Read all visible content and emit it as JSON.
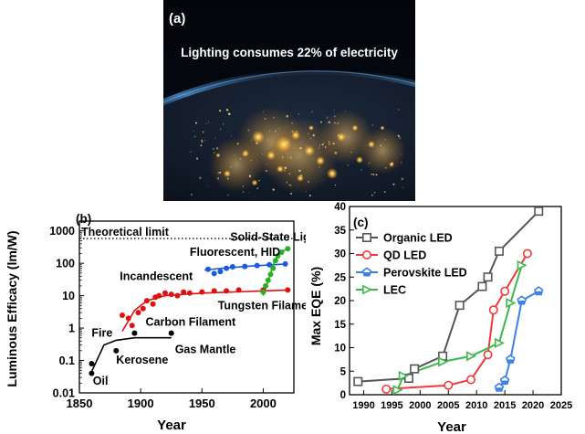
{
  "photo": {
    "panel_label": "(a)",
    "caption": "Lighting consumes 22% of electricity"
  },
  "chart_data": [
    {
      "type": "scatter",
      "panel_label": "(b)",
      "title": "",
      "xlabel": "Year",
      "ylabel": "Luminous Efficacy (lm/W)",
      "x_range": [
        1850,
        2025
      ],
      "x_ticks": [
        1850,
        1900,
        1950,
        2000
      ],
      "y_scale": "log",
      "y_range": [
        0.01,
        2000
      ],
      "y_ticks": [
        {
          "value": 0.01,
          "label": "0.01"
        },
        {
          "value": 0.1,
          "label": "0.1"
        },
        {
          "value": 1,
          "label": "1"
        },
        {
          "value": 10,
          "label": "10"
        },
        {
          "value": 100,
          "label": "100"
        },
        {
          "value": 1000,
          "label": "1000"
        }
      ],
      "grid": false,
      "reference_line": {
        "label": "Theoretical limit",
        "value": 580,
        "style": "dotted"
      },
      "series": [
        {
          "color": "#000000",
          "points": [
            [
              1860,
              0.04
            ],
            [
              1860,
              0.08
            ],
            [
              1880,
              0.2
            ],
            [
              1895,
              0.7
            ],
            [
              1925,
              0.7
            ]
          ],
          "fit": [
            [
              1860,
              0.045
            ],
            [
              1870,
              0.3
            ],
            [
              1880,
              0.42
            ],
            [
              1895,
              0.5
            ],
            [
              1925,
              0.5
            ]
          ]
        },
        {
          "color": "#e01010",
          "points": [
            [
              1885,
              2.5
            ],
            [
              1890,
              2
            ],
            [
              1893,
              1.2
            ],
            [
              1898,
              3
            ],
            [
              1902,
              4
            ],
            [
              1905,
              7
            ],
            [
              1910,
              5.5
            ],
            [
              1912,
              9
            ],
            [
              1915,
              10
            ],
            [
              1920,
              12
            ],
            [
              1925,
              11
            ],
            [
              1930,
              10
            ],
            [
              1935,
              13
            ],
            [
              1940,
              12
            ],
            [
              1950,
              13
            ],
            [
              1960,
              14
            ],
            [
              1970,
              14
            ],
            [
              1980,
              15
            ],
            [
              2000,
              15
            ],
            [
              2020,
              15
            ]
          ],
          "fit": [
            [
              1885,
              0.8
            ],
            [
              1895,
              3.5
            ],
            [
              1905,
              7
            ],
            [
              1920,
              10
            ],
            [
              1950,
              12
            ],
            [
              2000,
              14
            ],
            [
              2020,
              15
            ]
          ]
        },
        {
          "color": "#1a5ae0",
          "points": [
            [
              1955,
              65
            ],
            [
              1960,
              48
            ],
            [
              1965,
              55
            ],
            [
              1970,
              70
            ],
            [
              1975,
              78
            ],
            [
              1985,
              80
            ],
            [
              1995,
              85
            ],
            [
              2005,
              90
            ],
            [
              2018,
              95
            ]
          ],
          "fit": [
            [
              1952,
              62
            ],
            [
              1970,
              72
            ],
            [
              1990,
              82
            ],
            [
              2020,
              96
            ]
          ]
        },
        {
          "color": "#28b028",
          "points": [
            [
              2000,
              13
            ],
            [
              2002,
              20
            ],
            [
              2004,
              30
            ],
            [
              2006,
              45
            ],
            [
              2008,
              70
            ],
            [
              2010,
              120
            ],
            [
              2012,
              170
            ],
            [
              2015,
              220
            ],
            [
              2020,
              280
            ]
          ],
          "fit": [
            [
              2000,
              10
            ],
            [
              2003,
              22
            ],
            [
              2006,
              50
            ],
            [
              2009,
              110
            ],
            [
              2012,
              180
            ],
            [
              2016,
              240
            ],
            [
              2020,
              280
            ]
          ]
        }
      ],
      "annotations": [
        {
          "text": "Solid-State Lighting",
          "x": 1973,
          "y": 500
        },
        {
          "text": "Fluorescent, HID",
          "x": 1940,
          "y": 170
        },
        {
          "text": "Incandescent",
          "x": 1883,
          "y": 30
        },
        {
          "text": "Tungsten Filament",
          "x": 1963,
          "y": 3.8
        },
        {
          "text": "Carbon Filament",
          "x": 1904,
          "y": 1.2
        },
        {
          "text": "Fire",
          "x": 1860,
          "y": 0.55
        },
        {
          "text": "Gas Mantle",
          "x": 1928,
          "y": 0.17
        },
        {
          "text": "Kerosene",
          "x": 1880,
          "y": 0.08
        },
        {
          "text": "Oil",
          "x": 1861,
          "y": 0.018
        }
      ]
    },
    {
      "type": "line",
      "panel_label": "(c)",
      "title": "",
      "xlabel": "Year",
      "ylabel": "Max EQE (%)",
      "x_range": [
        1987.5,
        2025
      ],
      "x_ticks": [
        1990,
        1995,
        2000,
        2005,
        2010,
        2015,
        2020,
        2025
      ],
      "y_range": [
        0,
        40
      ],
      "y_ticks": [
        0,
        5,
        10,
        15,
        20,
        25,
        30,
        35,
        40
      ],
      "grid": false,
      "legend": "top-left",
      "series": [
        {
          "name": "Organic LED",
          "color": "#555555",
          "marker": "square",
          "points": [
            [
              1989,
              2.8
            ],
            [
              1998,
              3.5
            ],
            [
              1999,
              5.5
            ],
            [
              2004,
              8.2
            ],
            [
              2007,
              19
            ],
            [
              2011,
              23
            ],
            [
              2012,
              25
            ],
            [
              2014,
              30.5
            ],
            [
              2021,
              39
            ]
          ]
        },
        {
          "name": "QD LED",
          "color": "#f03a3a",
          "marker": "circle",
          "points": [
            [
              1994,
              1.2
            ],
            [
              2005,
              2
            ],
            [
              2009,
              3.2
            ],
            [
              2012,
              8.5
            ],
            [
              2013,
              18
            ],
            [
              2015,
              22
            ],
            [
              2019,
              30
            ]
          ]
        },
        {
          "name": "Perovskite LED",
          "color": "#3a80e8",
          "marker": "pentagon",
          "points": [
            [
              2014,
              1.5
            ],
            [
              2015,
              3
            ],
            [
              2016,
              7.5
            ],
            [
              2018,
              20
            ],
            [
              2021,
              22
            ]
          ]
        },
        {
          "name": "LEC",
          "color": "#3cb84a",
          "marker": "triangle-right",
          "points": [
            [
              1996,
              1
            ],
            [
              1997,
              4
            ],
            [
              2004,
              7
            ],
            [
              2009,
              8.2
            ],
            [
              2014,
              11
            ],
            [
              2016,
              19.5
            ],
            [
              2018,
              27.5
            ]
          ]
        }
      ]
    }
  ]
}
